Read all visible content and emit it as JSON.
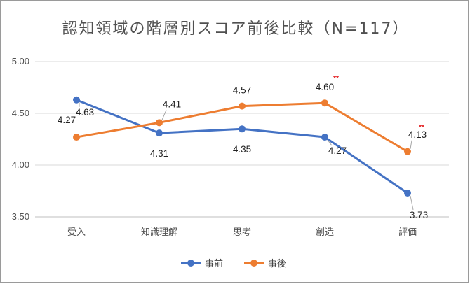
{
  "chart_data": {
    "type": "line",
    "title": "認知領域の階層別スコア前後比較（N=117）",
    "categories": [
      "受入",
      "知識理解",
      "思考",
      "創造",
      "評価"
    ],
    "ylim": [
      3.5,
      5.0
    ],
    "yticks": [
      "3.50",
      "4.00",
      "4.50",
      "5.00"
    ],
    "grid": true,
    "legend_position": "bottom",
    "series": [
      {
        "name": "事前",
        "color": "#4472c4",
        "values": [
          4.63,
          4.31,
          4.35,
          4.27,
          3.73
        ],
        "labels": [
          "4.63",
          "4.31",
          "4.35",
          "4.27",
          "3.73"
        ]
      },
      {
        "name": "事後",
        "color": "#ed7d31",
        "values": [
          4.27,
          4.41,
          4.57,
          4.6,
          4.13
        ],
        "labels": [
          "4.27",
          "4.41",
          "4.57",
          "4.60",
          "4.13"
        ]
      }
    ],
    "annotations": [
      {
        "category": "創造",
        "text": "**"
      },
      {
        "category": "評価",
        "text": "**"
      }
    ]
  }
}
